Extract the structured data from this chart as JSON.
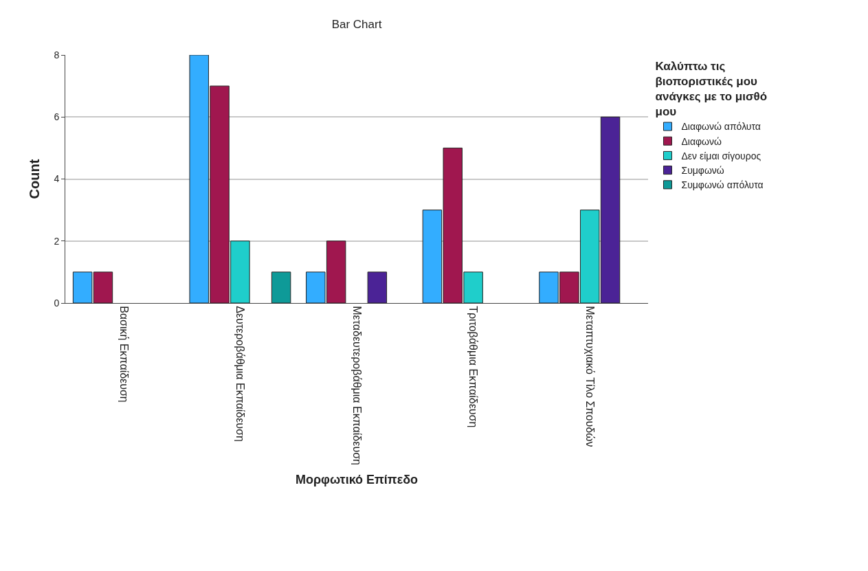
{
  "chart_data": {
    "type": "bar",
    "title": "Bar Chart",
    "xlabel": "Μορφωτικό Επίπεδο",
    "ylabel": "Count",
    "legend_title": "Καλύπτω τις βιοποριστικές μου ανάγκες με το μισθό μου",
    "categories": [
      "Βασική Εκπαίδευση",
      "Δευτεροβάθμια Εκπαίδευση",
      "Μεταδευτεροβάθμια Εκπαίδευση",
      "Τριτοβάθμια Εκπαίδευση",
      "Μεταπτυχιακό Τίλο Σπουδών"
    ],
    "series": [
      {
        "name": "Διαφωνώ απόλυτα",
        "color": "#33adff",
        "values": [
          1,
          8,
          1,
          3,
          1
        ]
      },
      {
        "name": "Διαφωνώ",
        "color": "#a0174f",
        "values": [
          1,
          7,
          2,
          5,
          1
        ]
      },
      {
        "name": "Δεν είμαι σίγουρος",
        "color": "#1fcecb",
        "values": [
          null,
          2,
          null,
          1,
          3
        ]
      },
      {
        "name": "Συμφωνώ",
        "color": "#4b2396",
        "values": [
          null,
          null,
          1,
          null,
          6
        ]
      },
      {
        "name": "Συμφωνώ απόλυτα",
        "color": "#0e9a98",
        "values": [
          null,
          1,
          null,
          null,
          null
        ]
      }
    ],
    "ylim": [
      0,
      8
    ],
    "yticks": [
      0,
      2,
      4,
      6,
      8
    ],
    "grid": "y",
    "legend": "right"
  }
}
